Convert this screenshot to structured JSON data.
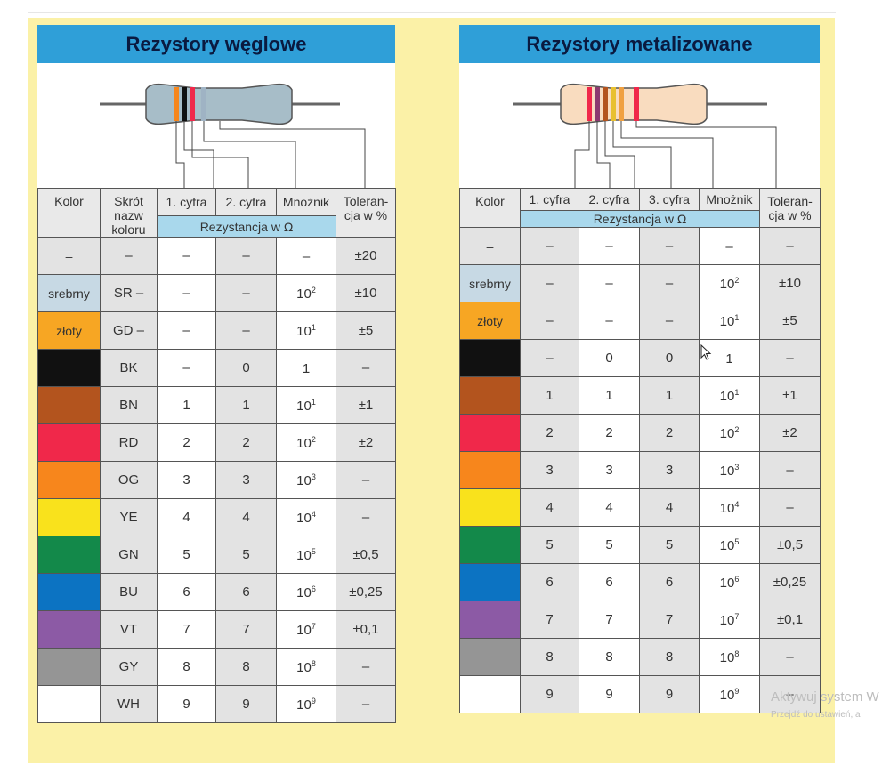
{
  "panels": [
    {
      "title": "Rezystory węglowe",
      "headers": {
        "kolor": "Kolor",
        "skrot": "Skrót nazw koloru",
        "c1": "1. cyfra",
        "c2": "2. cyfra",
        "mnoznik": "Mnożnik",
        "tolerancja": "Toleran-cja w %",
        "rezystancja": "Rezystancja w Ω"
      },
      "rows": [
        {
          "label": "–",
          "abbr": "–",
          "c1": "–",
          "c2": "–",
          "mult": "–",
          "mult_exp": "",
          "tol": "±20"
        },
        {
          "label": "srebrny",
          "abbr": "SR –",
          "c1": "–",
          "c2": "–",
          "mult": "10",
          "mult_exp": "2",
          "tol": "±10"
        },
        {
          "label": "złoty",
          "abbr": "GD –",
          "c1": "–",
          "c2": "–",
          "mult": "10",
          "mult_exp": "1",
          "tol": "±5"
        },
        {
          "label": "",
          "abbr": "BK",
          "c1": "–",
          "c2": "0",
          "mult": "1",
          "mult_exp": "",
          "tol": "–"
        },
        {
          "label": "",
          "abbr": "BN",
          "c1": "1",
          "c2": "1",
          "mult": "10",
          "mult_exp": "1",
          "tol": "±1"
        },
        {
          "label": "",
          "abbr": "RD",
          "c1": "2",
          "c2": "2",
          "mult": "10",
          "mult_exp": "2",
          "tol": "±2"
        },
        {
          "label": "",
          "abbr": "OG",
          "c1": "3",
          "c2": "3",
          "mult": "10",
          "mult_exp": "3",
          "tol": "–"
        },
        {
          "label": "",
          "abbr": "YE",
          "c1": "4",
          "c2": "4",
          "mult": "10",
          "mult_exp": "4",
          "tol": "–"
        },
        {
          "label": "",
          "abbr": "GN",
          "c1": "5",
          "c2": "5",
          "mult": "10",
          "mult_exp": "5",
          "tol": "±0,5"
        },
        {
          "label": "",
          "abbr": "BU",
          "c1": "6",
          "c2": "6",
          "mult": "10",
          "mult_exp": "6",
          "tol": "±0,25"
        },
        {
          "label": "",
          "abbr": "VT",
          "c1": "7",
          "c2": "7",
          "mult": "10",
          "mult_exp": "7",
          "tol": "±0,1"
        },
        {
          "label": "",
          "abbr": "GY",
          "c1": "8",
          "c2": "8",
          "mult": "10",
          "mult_exp": "8",
          "tol": "–"
        },
        {
          "label": "",
          "abbr": "WH",
          "c1": "9",
          "c2": "9",
          "mult": "10",
          "mult_exp": "9",
          "tol": "–"
        }
      ]
    },
    {
      "title": "Rezystory metalizowane",
      "headers": {
        "kolor": "Kolor",
        "c1": "1. cyfra",
        "c2": "2. cyfra",
        "c3": "3. cyfra",
        "mnoznik": "Mnożnik",
        "tolerancja": "Toleran-cja w %",
        "rezystancja": "Rezystancja w Ω"
      },
      "rows": [
        {
          "label": "–",
          "c1": "–",
          "c2": "–",
          "c3": "–",
          "mult": "–",
          "mult_exp": "",
          "tol": "–"
        },
        {
          "label": "srebrny",
          "c1": "–",
          "c2": "–",
          "c3": "–",
          "mult": "10",
          "mult_exp": "2",
          "tol": "±10"
        },
        {
          "label": "złoty",
          "c1": "–",
          "c2": "–",
          "c3": "–",
          "mult": "10",
          "mult_exp": "1",
          "tol": "±5"
        },
        {
          "label": "",
          "c1": "–",
          "c2": "0",
          "c3": "0",
          "mult": "1",
          "mult_exp": "",
          "tol": "–"
        },
        {
          "label": "",
          "c1": "1",
          "c2": "1",
          "c3": "1",
          "mult": "10",
          "mult_exp": "1",
          "tol": "±1"
        },
        {
          "label": "",
          "c1": "2",
          "c2": "2",
          "c3": "2",
          "mult": "10",
          "mult_exp": "2",
          "tol": "±2"
        },
        {
          "label": "",
          "c1": "3",
          "c2": "3",
          "c3": "3",
          "mult": "10",
          "mult_exp": "3",
          "tol": "–"
        },
        {
          "label": "",
          "c1": "4",
          "c2": "4",
          "c3": "4",
          "mult": "10",
          "mult_exp": "4",
          "tol": "–"
        },
        {
          "label": "",
          "c1": "5",
          "c2": "5",
          "c3": "5",
          "mult": "10",
          "mult_exp": "5",
          "tol": "±0,5"
        },
        {
          "label": "",
          "c1": "6",
          "c2": "6",
          "c3": "6",
          "mult": "10",
          "mult_exp": "6",
          "tol": "±0,25"
        },
        {
          "label": "",
          "c1": "7",
          "c2": "7",
          "c3": "7",
          "mult": "10",
          "mult_exp": "7",
          "tol": "±0,1"
        },
        {
          "label": "",
          "c1": "8",
          "c2": "8",
          "c3": "8",
          "mult": "10",
          "mult_exp": "8",
          "tol": "–"
        },
        {
          "label": "",
          "c1": "9",
          "c2": "9",
          "c3": "9",
          "mult": "10",
          "mult_exp": "9",
          "tol": "–"
        }
      ]
    }
  ],
  "band_colors": {
    "none": "#e3e3e3",
    "silver": "#c7d9e4",
    "gold": "#f7a623",
    "black": "#111111",
    "brown": "#b3541e",
    "red": "#f0284a",
    "orange": "#f7861c",
    "yellow": "#f9e21c",
    "green": "#13894a",
    "blue": "#0c73c2",
    "violet": "#8c5aa5",
    "gray": "#959595",
    "white": "#ffffff"
  },
  "watermark": {
    "line1": "Aktywuj system W",
    "line2": "Przejdź do ustawień, a"
  },
  "cursor_icon": "mouse-pointer-icon"
}
